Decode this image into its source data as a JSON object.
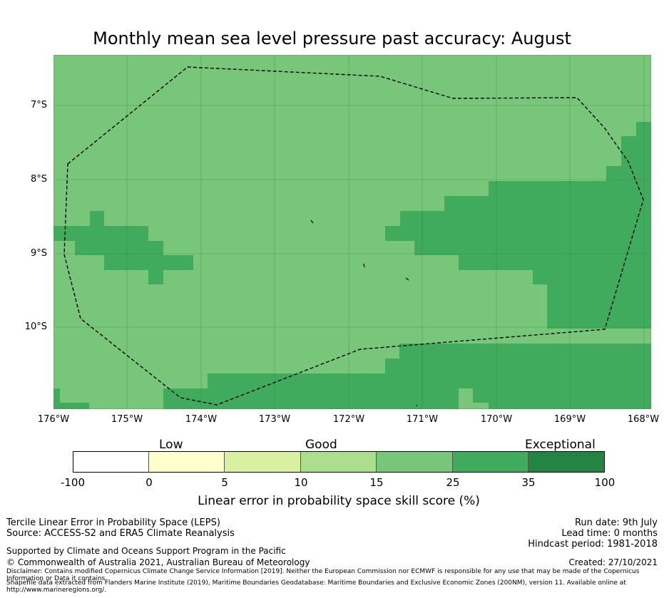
{
  "title": "Monthly mean sea level pressure past accuracy: August",
  "map": {
    "lat_labels": [
      "7°S",
      "8°S",
      "9°S",
      "10°S"
    ],
    "lon_labels": [
      "176°W",
      "175°W",
      "174°W",
      "173°W",
      "172°W",
      "171°W",
      "170°W",
      "169°W",
      "168°W"
    ],
    "colors": {
      "band_15_25": "#78c679",
      "band_25_35": "#41ab5d",
      "grid": "#2e7d32",
      "boundary": "#000000"
    }
  },
  "colorbar": {
    "category_labels": [
      "Low",
      "Good",
      "Exceptional"
    ],
    "ticks": [
      "-100",
      "0",
      "5",
      "10",
      "15",
      "25",
      "35",
      "100"
    ],
    "colors": [
      "#ffffff",
      "#ffffcc",
      "#d9f0a3",
      "#addd8e",
      "#78c679",
      "#41ab5d",
      "#238443"
    ],
    "title": "Linear error in probability space skill score (%)"
  },
  "info": {
    "method": "Tercile Linear Error in Probability Space (LEPS)",
    "source": "Source: ACCESS-S2 and ERA5 Climate Reanalysis",
    "support": "Supported by Climate and Oceans Support Program in the Pacific",
    "copyright": "© Commonwealth of Australia 2021, Australian Bureau of Meteorology",
    "disclaimer": "Disclaimer: Contains modified Copernicus Climate Change Service Information [2019]. Neither the European Commission nor ECMWF is responsible for any use that may be made of the Copernicus Information or Data it contains.",
    "shapefile": "Shapefile data extracted from Flanders Marine Institute (2019), Maritime Boundaries Geodatabase: Maritime Boundaries and Exclusive Economic Zones (200NM), version 11. Available online at http://www.marineregions.org/.",
    "run_date": "Run date: 9th July",
    "lead_time": "Lead time: 0 months",
    "hindcast": "Hindcast period: 1981-2018",
    "created": "Created: 27/10/2021"
  }
}
